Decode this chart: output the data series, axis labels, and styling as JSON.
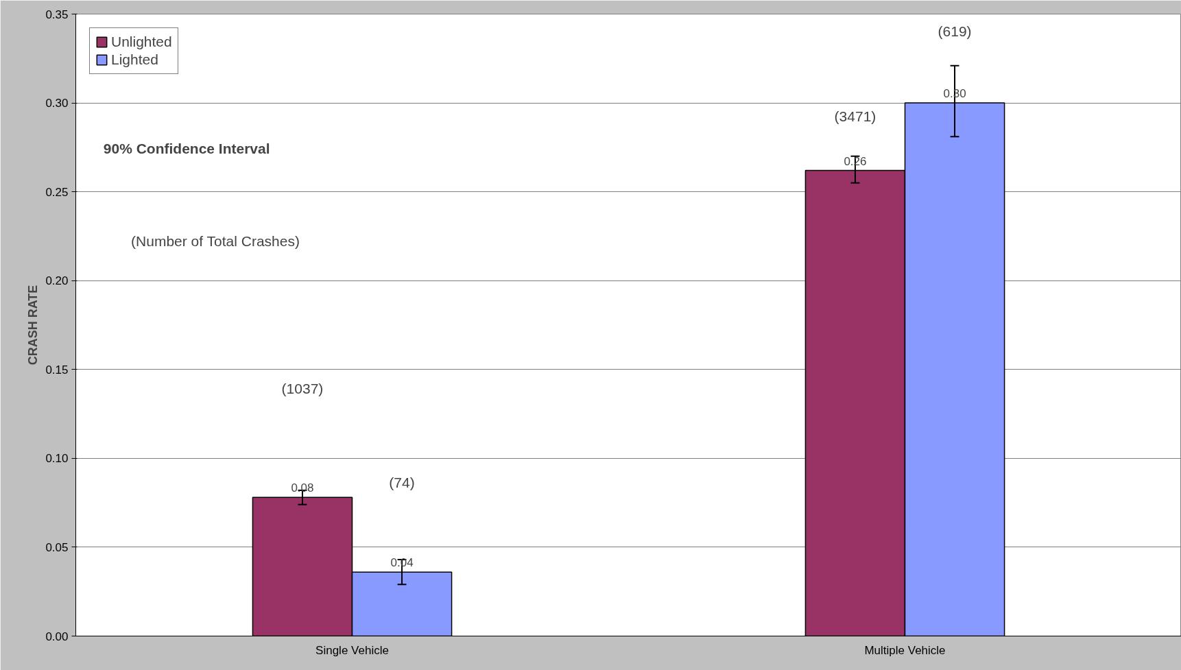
{
  "chart_data": {
    "type": "bar",
    "ylabel": "CRASH RATE",
    "categories": [
      "Single Vehicle",
      "Multiple Vehicle"
    ],
    "series": [
      {
        "name": "Unlighted",
        "color": "#993366",
        "values": [
          0.078,
          0.262
        ],
        "errors": [
          [
            0.074,
            0.082
          ],
          [
            0.255,
            0.27
          ]
        ],
        "value_labels": [
          "0.08",
          "0.26"
        ]
      },
      {
        "name": "Lighted",
        "color": "#8899ff",
        "values": [
          0.036,
          0.3
        ],
        "errors": [
          [
            0.029,
            0.043
          ],
          [
            0.281,
            0.321
          ]
        ],
        "value_labels": [
          "0.04",
          "0.30"
        ]
      }
    ],
    "annotations": [
      "90% Confidence Interval",
      "(Number of Total Crashes)",
      "(1037)",
      "(74)",
      "(3471)",
      "(619)"
    ],
    "ylim": [
      0,
      0.35
    ],
    "yticks": [
      {
        "value": 0,
        "label": "0.00"
      },
      {
        "value": 0.05,
        "label": "0.05"
      },
      {
        "value": 0.1,
        "label": "0.10"
      },
      {
        "value": 0.15,
        "label": "0.15"
      },
      {
        "value": 0.2,
        "label": "0.20"
      },
      {
        "value": 0.25,
        "label": "0.25"
      },
      {
        "value": 0.3,
        "label": "0.30"
      },
      {
        "value": 0.35,
        "label": "0.35"
      }
    ],
    "grid": "y",
    "legend": "top left"
  }
}
